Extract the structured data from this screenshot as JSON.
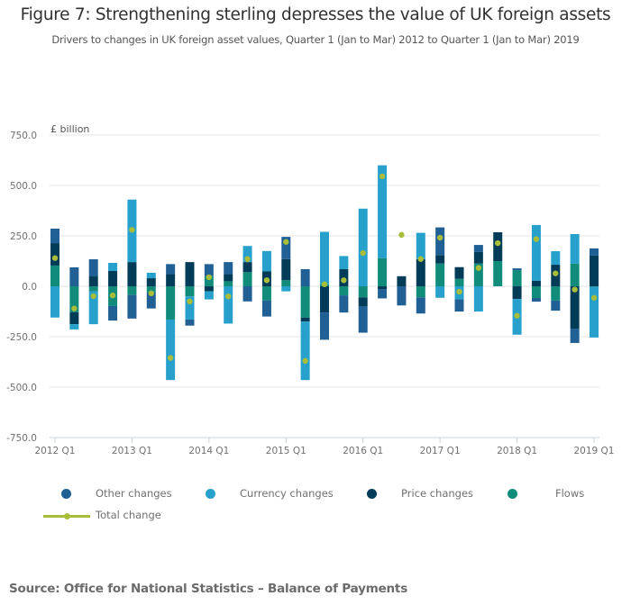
{
  "header": {
    "title": "Figure 7: Strengthening sterling depresses the value of UK foreign assets",
    "subtitle": "Drivers to changes in UK foreign asset values, Quarter 1 (Jan to Mar) 2012 to Quarter 1 (Jan to Mar) 2019"
  },
  "source": "Source: Office for National Statistics – Balance of Payments",
  "colors": {
    "other": "#206095",
    "currency": "#27A0CC",
    "price": "#003C57",
    "flows": "#118C7B",
    "total": "#A8BD3A",
    "grid": "#E6E6E6",
    "axis": "#C7D4E3"
  },
  "legend": [
    {
      "key": "other",
      "label": "Other changes",
      "icon": "circle"
    },
    {
      "key": "currency",
      "label": "Currency changes",
      "icon": "circle"
    },
    {
      "key": "price",
      "label": "Price changes",
      "icon": "circle"
    },
    {
      "key": "flows",
      "label": "Flows",
      "icon": "circle"
    },
    {
      "key": "total",
      "label": "Total change",
      "icon": "line-with-dot"
    }
  ],
  "chart_data": {
    "type": "bar",
    "stacked": true,
    "title": "Figure 7: Strengthening sterling depresses the value of UK foreign assets",
    "subtitle": "Drivers to changes in UK foreign asset values, Quarter 1 (Jan to Mar) 2012 to Quarter 1 (Jan to Mar) 2019",
    "ylabel": "£ billion",
    "xlabel": "",
    "ylim": [
      -750,
      750
    ],
    "yticks": [
      750,
      500,
      250,
      0,
      -250,
      -500,
      -750
    ],
    "ytick_labels": [
      "750.0",
      "500.0",
      "250.0",
      "0.0",
      "-250.0",
      "-500.0",
      "-750.0"
    ],
    "xtick_labels": [
      "2012 Q1",
      "2013 Q1",
      "2014 Q1",
      "2015 Q1",
      "2016 Q1",
      "2017 Q1",
      "2018 Q1",
      "2019 Q1"
    ],
    "grid": true,
    "legend_position": "bottom",
    "categories": [
      "2012 Q1",
      "2012 Q2",
      "2012 Q3",
      "2012 Q4",
      "2013 Q1",
      "2013 Q2",
      "2013 Q3",
      "2013 Q4",
      "2014 Q1",
      "2014 Q2",
      "2014 Q3",
      "2014 Q4",
      "2015 Q1",
      "2015 Q2",
      "2015 Q3",
      "2015 Q4",
      "2016 Q1",
      "2016 Q2",
      "2016 Q3",
      "2016 Q4",
      "2017 Q1",
      "2017 Q2",
      "2017 Q3",
      "2017 Q4",
      "2018 Q1",
      "2018 Q2",
      "2018 Q3",
      "2018 Q4",
      "2019 Q1"
    ],
    "series": [
      {
        "name": "Flows",
        "key": "flows",
        "type": "bar",
        "values": [
          103,
          -128,
          -25,
          -98,
          -43,
          -30,
          -165,
          -50,
          50,
          25,
          70,
          -70,
          30,
          -155,
          10,
          -45,
          -55,
          140,
          0,
          -55,
          113,
          37,
          113,
          125,
          80,
          -58,
          -71,
          112,
          -3
        ]
      },
      {
        "name": "Price changes",
        "key": "price",
        "type": "bar",
        "values": [
          111,
          -60,
          49,
          76,
          120,
          40,
          60,
          120,
          -25,
          35,
          50,
          75,
          105,
          -20,
          -130,
          85,
          -45,
          -15,
          50,
          135,
          42,
          58,
          57,
          143,
          -63,
          28,
          107,
          -210,
          152
        ]
      },
      {
        "name": "Currency changes",
        "key": "currency",
        "type": "bar",
        "values": [
          -155,
          -26,
          -163,
          40,
          310,
          27,
          -300,
          -115,
          -40,
          -185,
          80,
          100,
          -25,
          -290,
          260,
          65,
          385,
          460,
          0,
          130,
          -57,
          -65,
          -125,
          0,
          -177,
          276,
          67,
          147,
          -251
        ]
      },
      {
        "name": "Other changes",
        "key": "other",
        "type": "bar",
        "values": [
          72,
          94,
          85,
          -72,
          -117,
          -80,
          50,
          -30,
          60,
          60,
          -75,
          -80,
          110,
          85,
          -135,
          -85,
          -130,
          -45,
          -95,
          -80,
          137,
          -60,
          35,
          0,
          9,
          -18,
          -50,
          -71,
          36
        ]
      },
      {
        "name": "Total change",
        "key": "total",
        "type": "point",
        "values": [
          140,
          -110,
          -49,
          -45,
          280,
          -35,
          -355,
          -75,
          45,
          -50,
          135,
          30,
          220,
          -370,
          10,
          30,
          165,
          545,
          255,
          135,
          241,
          -27,
          91,
          214,
          -146,
          234,
          64,
          -16,
          -57
        ]
      }
    ]
  }
}
